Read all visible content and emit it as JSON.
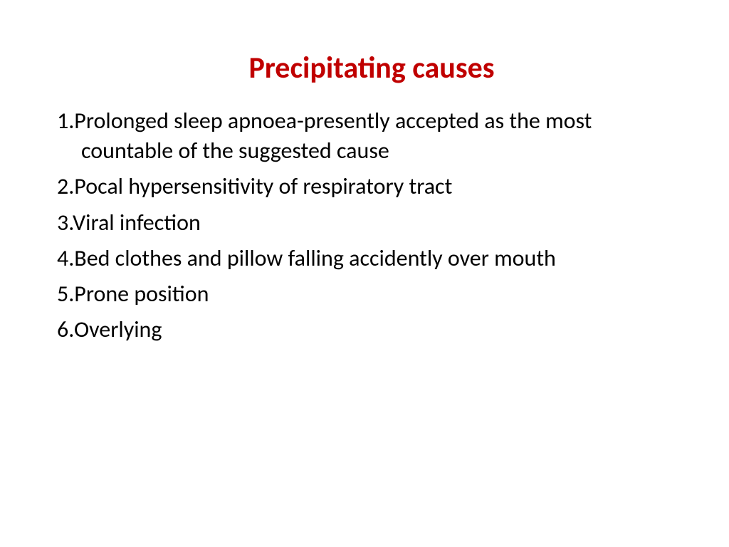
{
  "title": {
    "text": "Precipitating causes",
    "color": "#c00000",
    "fontsize": 42
  },
  "body": {
    "color": "#000000",
    "fontsize": 32,
    "line_height": 1.32
  },
  "items": [
    {
      "num": "1.",
      "text": "Prolonged sleep apnoea-presently accepted as the most countable of the suggested cause"
    },
    {
      "num": "2.",
      "text": "Pocal hypersensitivity of respiratory tract"
    },
    {
      "num": "3.",
      "text": "Viral infection"
    },
    {
      "num": "4.",
      "text": "Bed clothes and pillow falling accidently over mouth"
    },
    {
      "num": "5.",
      "text": "Prone position"
    },
    {
      "num": "6.",
      "text": "Overlying"
    }
  ]
}
